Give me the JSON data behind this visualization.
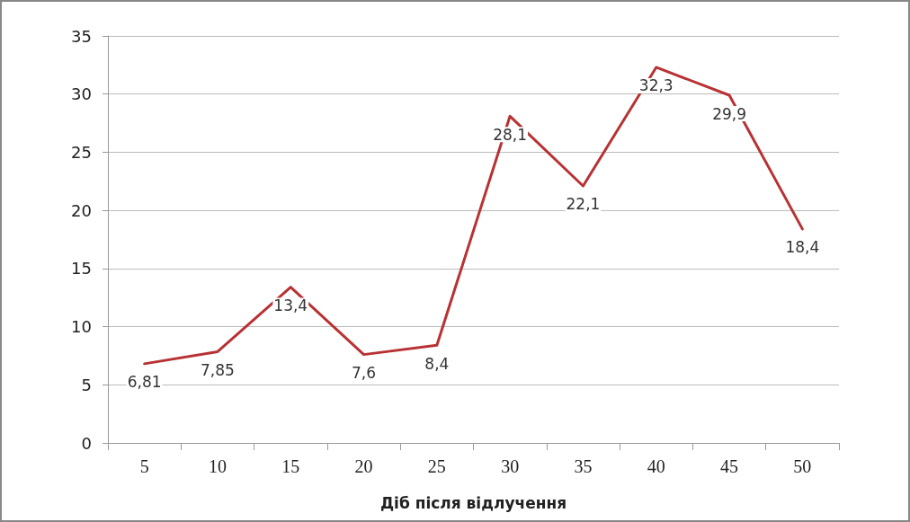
{
  "chart_data": {
    "type": "line",
    "xlabel": "Діб після відлучення",
    "categories": [
      "5",
      "10",
      "15",
      "20",
      "25",
      "30",
      "35",
      "40",
      "45",
      "50"
    ],
    "series": [
      {
        "color": "#b83234",
        "values": [
          6.81,
          7.85,
          13.4,
          7.6,
          8.4,
          28.1,
          22.1,
          32.3,
          29.9,
          18.4
        ],
        "value_labels": [
          "6,81",
          "7,85",
          "13,4",
          "7,6",
          "8,4",
          "28,1",
          "22,1",
          "32,3",
          "29,9",
          "18,4"
        ]
      }
    ],
    "ylim": [
      0,
      35
    ],
    "yticks": [
      0,
      5,
      10,
      15,
      20,
      25,
      30,
      35
    ],
    "grid": "y",
    "marker": "none",
    "line_style": "solid"
  }
}
